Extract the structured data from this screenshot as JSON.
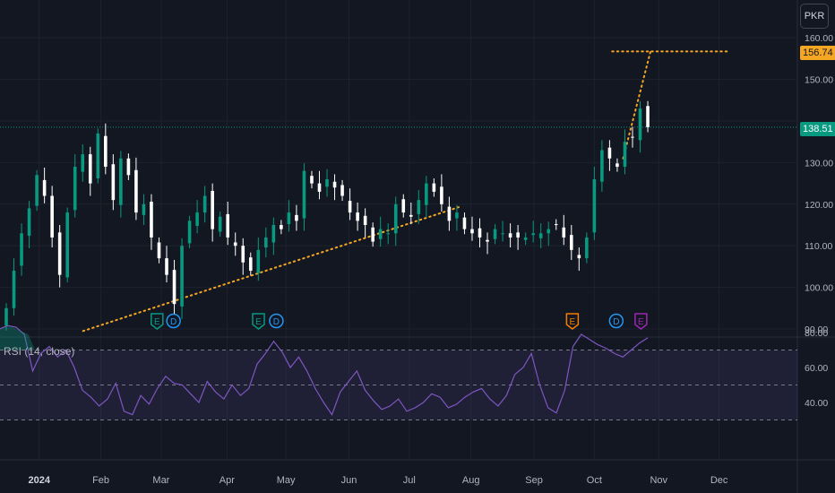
{
  "currency": "PKR",
  "rsi_label": "RSI (14, close)",
  "last_price_label": "138.51",
  "target_price_label": "156.74",
  "colors": {
    "up": "#089981",
    "down": "#ffffff",
    "trend": "#f5a623",
    "rsi": "#7e57c2",
    "grid": "#1e222d",
    "bg": "#131722"
  },
  "chart_data": [
    {
      "type": "candlestick",
      "title": "",
      "y_ticks": [
        90,
        100,
        110,
        120,
        130,
        140,
        150,
        160
      ],
      "y_tick_labels": [
        "90.00",
        "100.00",
        "110.00",
        "120.00",
        "130.00",
        "",
        "150.00",
        "160.00"
      ],
      "ylim": [
        90,
        162
      ],
      "last_price": 138.51,
      "target_price": 156.74,
      "months": [
        {
          "label": "2024",
          "bold": true,
          "week": 2.4
        },
        {
          "label": "Feb",
          "bold": false,
          "week": 6.9
        },
        {
          "label": "Mar",
          "bold": false,
          "week": 11.3
        },
        {
          "label": "Apr",
          "bold": false,
          "week": 16.1
        },
        {
          "label": "May",
          "bold": false,
          "week": 20.4
        },
        {
          "label": "Jun",
          "bold": false,
          "week": 25.0
        },
        {
          "label": "Jul",
          "bold": false,
          "week": 29.4
        },
        {
          "label": "Aug",
          "bold": false,
          "week": 33.9
        },
        {
          "label": "Sep",
          "bold": false,
          "week": 38.5
        },
        {
          "label": "Oct",
          "bold": false,
          "week": 42.9
        },
        {
          "label": "Nov",
          "bold": false,
          "week": 47.6
        },
        {
          "label": "Dec",
          "bold": false,
          "week": 52.0
        }
      ],
      "closes": [
        95,
        104,
        113,
        119,
        127,
        122,
        112,
        103,
        118,
        129,
        132,
        125,
        137,
        129,
        121,
        131,
        127,
        118,
        120,
        112,
        107,
        103,
        96,
        110,
        116,
        118,
        122,
        114,
        117,
        112,
        110,
        106,
        104,
        109,
        112,
        115,
        114,
        118,
        116,
        128,
        125,
        123,
        126,
        124,
        122,
        118,
        116,
        115,
        111,
        114,
        113,
        120,
        118,
        117,
        121,
        125,
        123,
        120,
        116,
        118,
        114,
        113,
        112,
        111,
        114,
        113,
        112,
        112,
        112,
        113,
        113,
        114,
        115,
        112,
        109,
        107,
        112,
        126,
        133,
        131,
        129,
        135,
        136,
        143,
        138.5
      ],
      "trendlines": [
        {
          "from_week": 5.6,
          "from_price": 89.5,
          "to_week": 33.2,
          "to_price": 119.5
        },
        {
          "from_week": 45.0,
          "from_price": 131.0,
          "to_week": 47.0,
          "to_price": 156.74
        },
        {
          "from_week": 44.2,
          "from_price": 156.74,
          "to_week": 52.6,
          "to_price": 156.74
        }
      ],
      "events": [
        {
          "label": "E",
          "week": 11.0,
          "type": "earnings"
        },
        {
          "label": "D",
          "week": 12.2,
          "type": "dividend"
        },
        {
          "label": "E",
          "week": 18.4,
          "type": "earnings"
        },
        {
          "label": "D",
          "week": 19.7,
          "type": "dividend"
        },
        {
          "label": "E",
          "week": 41.3,
          "type": "earnings-upcoming"
        },
        {
          "label": "D",
          "week": 44.5,
          "type": "dividend"
        },
        {
          "label": "E",
          "week": 46.3,
          "type": "earnings-future"
        }
      ]
    },
    {
      "type": "line",
      "title": "RSI (14, close)",
      "y_ticks": [
        40,
        60,
        80
      ],
      "y_tick_labels": [
        "40.00",
        "60.00",
        "80.00"
      ],
      "levels": [
        30,
        50,
        70
      ],
      "ylim": [
        28,
        84
      ],
      "values": [
        82,
        84,
        83,
        79,
        58,
        68,
        72,
        66,
        70,
        60,
        47,
        43,
        38,
        42,
        51,
        35,
        33,
        44,
        39,
        48,
        55,
        51,
        50,
        45,
        40,
        52,
        46,
        42,
        50,
        44,
        48,
        62,
        68,
        75,
        69,
        60,
        66,
        58,
        48,
        40,
        33,
        46,
        52,
        58,
        47,
        41,
        36,
        38,
        42,
        35,
        37,
        40,
        45,
        43,
        37,
        39,
        43,
        46,
        48,
        42,
        38,
        44,
        56,
        60,
        68,
        50,
        37,
        34,
        47,
        72,
        79,
        76,
        73,
        71,
        68,
        66,
        70,
        74,
        77
      ]
    }
  ]
}
